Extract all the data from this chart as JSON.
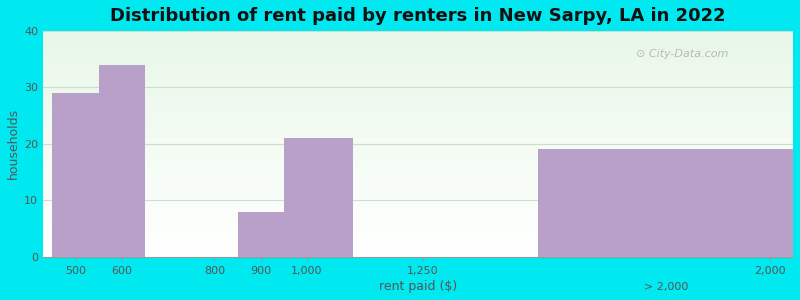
{
  "title": "Distribution of rent paid by renters in New Sarpy, LA in 2022",
  "xlabel": "rent paid ($)",
  "ylabel": "households",
  "bar_color": "#b8a0c8",
  "bg_color_outer": "#00e8f0",
  "ylim": [
    0,
    40
  ],
  "yticks": [
    0,
    10,
    20,
    30,
    40
  ],
  "title_fontsize": 13,
  "axis_label_fontsize": 9,
  "tick_fontsize": 8,
  "watermark": "City-Data.com",
  "bar_left_edges": [
    450,
    550,
    650,
    850,
    950,
    1100,
    1500
  ],
  "bar_right_edges": [
    550,
    650,
    850,
    950,
    1100,
    1500,
    2000
  ],
  "bar_values": [
    29,
    34,
    0,
    8,
    21,
    0,
    19
  ],
  "tick_positions": [
    500,
    600,
    800,
    900,
    1000,
    1250,
    2000
  ],
  "tick_labels": [
    "500",
    "600",
    "800",
    "900",
    "1,000",
    "1,250",
    "2,000"
  ],
  "xlim_left": 430,
  "xlim_right": 2050,
  "grid_color": "#d8eede",
  "bar_edge_color": "none"
}
